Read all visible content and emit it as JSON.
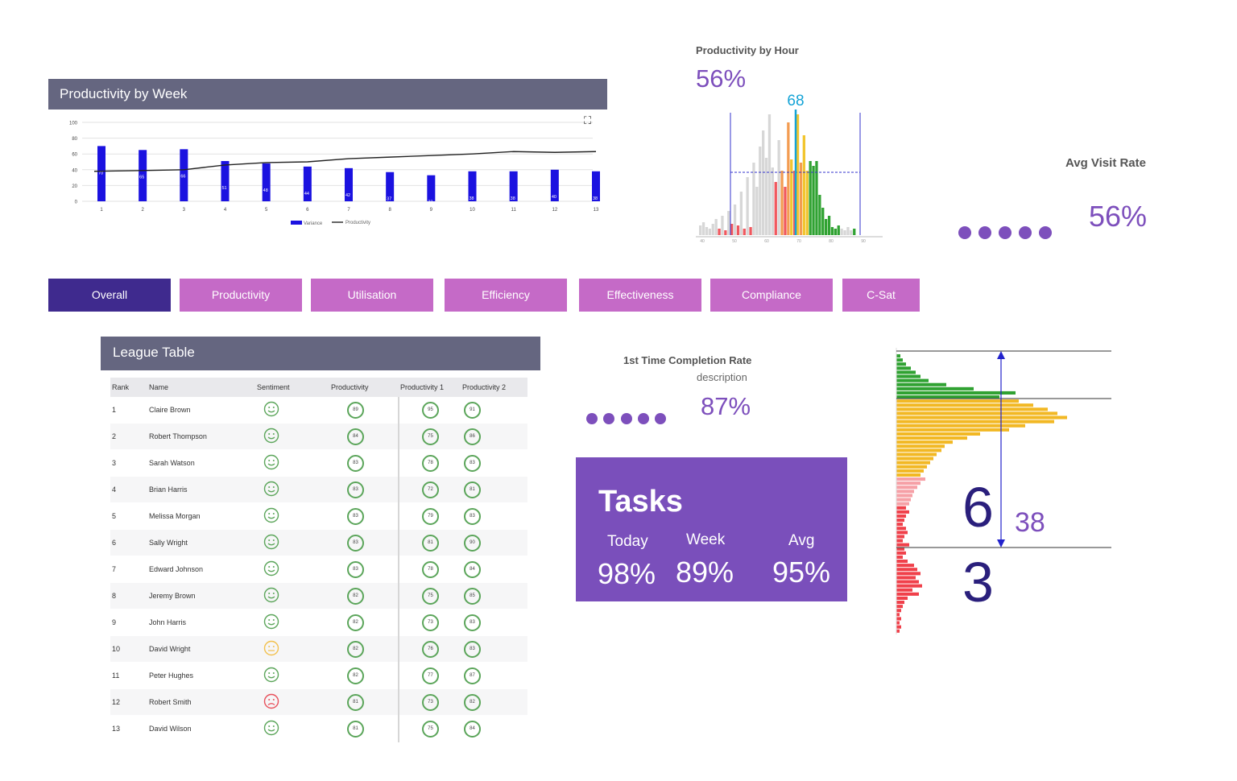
{
  "week": {
    "title": "Productivity by Week",
    "expand_icon": "expand-icon",
    "legend": {
      "variance": "Variance",
      "productivity": "Productivity"
    }
  },
  "chart_data": {
    "type": "bar",
    "categories": [
      "1",
      "2",
      "3",
      "4",
      "5",
      "6",
      "7",
      "8",
      "9",
      "10",
      "11",
      "12",
      "13"
    ],
    "series": [
      {
        "name": "Variance",
        "values": [
          70,
          65,
          66,
          51,
          48,
          44,
          42,
          37,
          33,
          38,
          38,
          40,
          38
        ],
        "color": "#1b12e0"
      },
      {
        "name": "Productivity",
        "values": [
          38,
          39,
          40,
          46,
          49,
          50,
          54,
          56,
          58,
          60,
          63,
          62,
          63
        ],
        "color": "#222222"
      }
    ],
    "yticks": [
      "0",
      "20",
      "40",
      "60",
      "80",
      "100"
    ],
    "ylim": [
      0,
      100
    ],
    "legend_position": "bottom"
  },
  "hour": {
    "title": "Productivity by Hour",
    "percent": "56%",
    "marker_value": "68",
    "axis_labels": [
      "40",
      "50",
      "60",
      "70",
      "80",
      "90"
    ],
    "bar_colors": {
      "grey": "#d7d7d7",
      "red": "#f0585e",
      "orange": "#f39c52",
      "yellow": "#f2c52f",
      "green": "#30a232"
    },
    "marker_color": "#14a3d6"
  },
  "visit": {
    "title": "Avg Visit Rate",
    "percent": "56%",
    "dots": 5
  },
  "tabs": [
    "Overall",
    "Productivity",
    "Utilisation",
    "Efficiency",
    "Effectiveness",
    "Compliance",
    "C-Sat"
  ],
  "active_tab": "Overall",
  "league": {
    "title": "League Table",
    "columns": [
      "Rank",
      "Name",
      "Sentiment",
      "Productivity",
      "Productivity 1",
      "Productivity 2"
    ],
    "rows": [
      {
        "rank": "1",
        "name": "Claire Brown",
        "sentiment": "happy",
        "p": "89",
        "p1": "95",
        "p2": "91"
      },
      {
        "rank": "2",
        "name": "Robert Thompson",
        "sentiment": "happy",
        "p": "84",
        "p1": "75",
        "p2": "86"
      },
      {
        "rank": "3",
        "name": "Sarah Watson",
        "sentiment": "happy",
        "p": "83",
        "p1": "78",
        "p2": "83"
      },
      {
        "rank": "4",
        "name": "Brian Harris",
        "sentiment": "happy",
        "p": "83",
        "p1": "72",
        "p2": "81"
      },
      {
        "rank": "5",
        "name": "Melissa Morgan",
        "sentiment": "happy",
        "p": "83",
        "p1": "79",
        "p2": "83"
      },
      {
        "rank": "6",
        "name": "Sally Wright",
        "sentiment": "happy",
        "p": "83",
        "p1": "81",
        "p2": "90"
      },
      {
        "rank": "7",
        "name": "Edward Johnson",
        "sentiment": "happy",
        "p": "83",
        "p1": "78",
        "p2": "84"
      },
      {
        "rank": "8",
        "name": "Jeremy Brown",
        "sentiment": "happy",
        "p": "82",
        "p1": "75",
        "p2": "85"
      },
      {
        "rank": "9",
        "name": "John Harris",
        "sentiment": "happy",
        "p": "82",
        "p1": "73",
        "p2": "83"
      },
      {
        "rank": "10",
        "name": "David Wright",
        "sentiment": "neutral",
        "p": "82",
        "p1": "76",
        "p2": "83"
      },
      {
        "rank": "11",
        "name": "Peter Hughes",
        "sentiment": "happy",
        "p": "82",
        "p1": "77",
        "p2": "87"
      },
      {
        "rank": "12",
        "name": "Robert Smith",
        "sentiment": "sad",
        "p": "81",
        "p1": "73",
        "p2": "82"
      },
      {
        "rank": "13",
        "name": "David Wilson",
        "sentiment": "happy",
        "p": "81",
        "p1": "75",
        "p2": "84"
      }
    ],
    "sentiment_colors": {
      "happy": "#5ba55a",
      "neutral": "#f2c14e",
      "sad": "#e8505b"
    }
  },
  "completion": {
    "title": "1st Time Completion Rate",
    "description": "description",
    "percent": "87%",
    "dots": 5
  },
  "tasks": {
    "title": "Tasks",
    "items": [
      {
        "label": "Today",
        "value": "98%"
      },
      {
        "label": "Week",
        "value": "89%"
      },
      {
        "label": "Avg",
        "value": "95%"
      }
    ]
  },
  "dist": {
    "upper": "6",
    "lower": "3",
    "span": "38"
  }
}
